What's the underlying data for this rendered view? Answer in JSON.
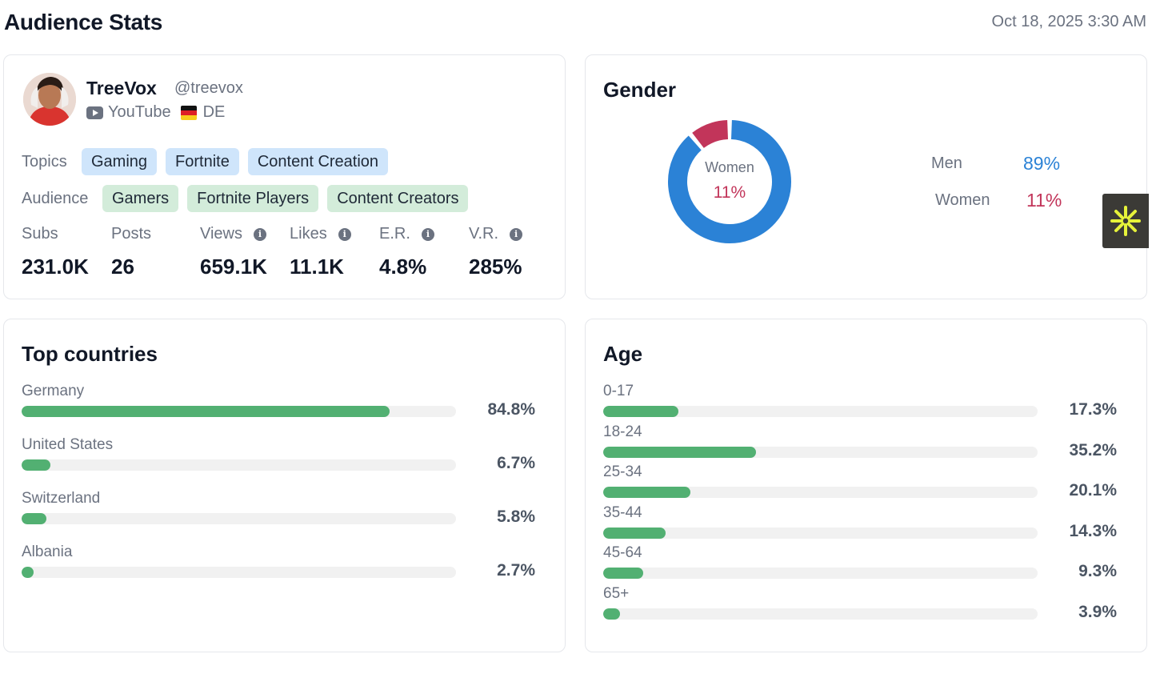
{
  "header": {
    "title": "Audience Stats",
    "timestamp": "Oct 18, 2025 3:30 AM"
  },
  "profile": {
    "name": "TreeVox",
    "handle": "@treevox",
    "platform": "YouTube",
    "country_code": "DE",
    "topics_label": "Topics",
    "topics": [
      "Gaming",
      "Fortnite",
      "Content Creation"
    ],
    "audience_label": "Audience",
    "audience": [
      "Gamers",
      "Fortnite Players",
      "Content Creators"
    ],
    "stats": [
      {
        "label": "Subs",
        "value": "231.0K",
        "info": false
      },
      {
        "label": "Posts",
        "value": "26",
        "info": false
      },
      {
        "label": "Views",
        "value": "659.1K",
        "info": true
      },
      {
        "label": "Likes",
        "value": "11.1K",
        "info": true
      },
      {
        "label": "E.R.",
        "value": "4.8%",
        "info": true
      },
      {
        "label": "V.R.",
        "value": "285%",
        "info": true
      }
    ]
  },
  "gender": {
    "title": "Gender",
    "center_label": "Women",
    "center_value": "11%",
    "men_label": "Men",
    "men_value": "89%",
    "women_label": "Women",
    "women_value": "11%",
    "men_fraction": 0.89,
    "women_fraction": 0.11,
    "men_color": "#2b82d6",
    "women_color": "#c2355a"
  },
  "countries": {
    "title": "Top countries",
    "items": [
      {
        "label": "Germany",
        "value": "84.8%",
        "pct": 84.8
      },
      {
        "label": "United States",
        "value": "6.7%",
        "pct": 6.7
      },
      {
        "label": "Switzerland",
        "value": "5.8%",
        "pct": 5.8
      },
      {
        "label": "Albania",
        "value": "2.7%",
        "pct": 2.7
      }
    ]
  },
  "age": {
    "title": "Age",
    "items": [
      {
        "label": "0-17",
        "value": "17.3%",
        "pct": 17.3
      },
      {
        "label": "18-24",
        "value": "35.2%",
        "pct": 35.2
      },
      {
        "label": "25-34",
        "value": "20.1%",
        "pct": 20.1
      },
      {
        "label": "35-44",
        "value": "14.3%",
        "pct": 14.3
      },
      {
        "label": "45-64",
        "value": "9.3%",
        "pct": 9.3
      },
      {
        "label": "65+",
        "value": "3.9%",
        "pct": 3.9
      }
    ]
  },
  "colors": {
    "bar_fill": "#52b072",
    "bar_track": "#f1f1f1",
    "badge_icon": "#e6f23a"
  },
  "icons": {
    "platform": "youtube-icon",
    "flag": "germany-flag-icon",
    "info": "info-icon",
    "badge": "asterisk-icon"
  }
}
